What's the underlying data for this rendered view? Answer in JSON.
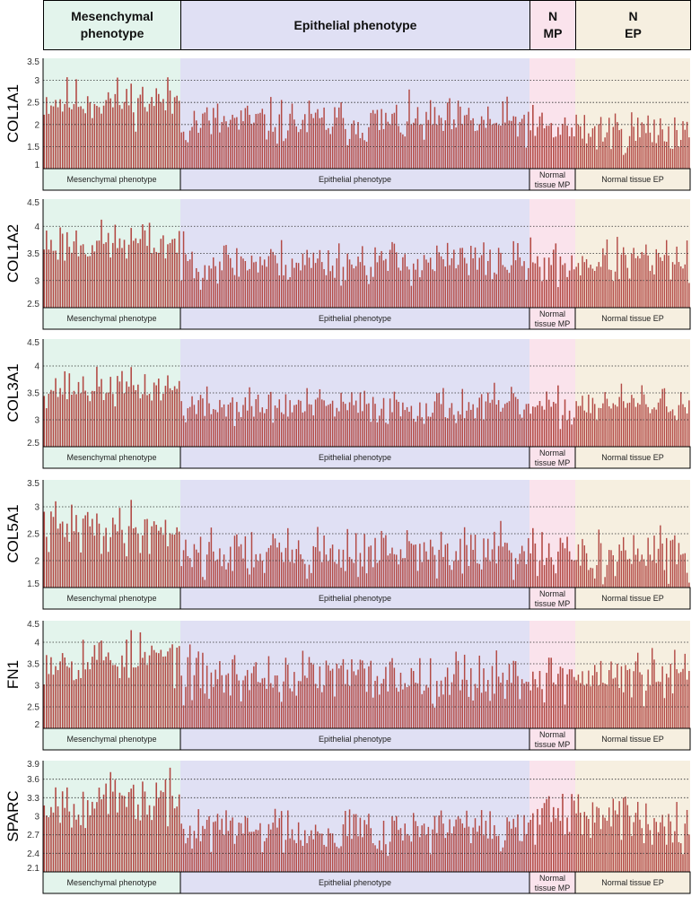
{
  "header": {
    "groups": [
      {
        "key": "mp",
        "label": "Mesenchymal\nphenotype",
        "color": "#e3f4ec"
      },
      {
        "key": "ep",
        "label": "Epithelial phenotype",
        "color": "#e0e0f4"
      },
      {
        "key": "nmp",
        "label": "N\nMP",
        "color": "#fae3ec"
      },
      {
        "key": "nep",
        "label": "N\nEP",
        "color": "#f6efe0"
      }
    ]
  },
  "colors": {
    "bar": "#b34a45",
    "bar_light": "#e2b1ae",
    "grid": "#333333",
    "axis": "#000000"
  },
  "groups": {
    "counts": {
      "mp": 60,
      "ep": 164,
      "nmp": 20,
      "nep": 56
    },
    "labels": {
      "mp": [
        "Mesenchymal phenotype"
      ],
      "ep": [
        "Epithelial phenotype"
      ],
      "nmp": [
        "Normal",
        "tissue MP"
      ],
      "nep": [
        "Normal tissue EP"
      ]
    }
  },
  "chart_data": [
    {
      "type": "bar",
      "gene": "COL1A1",
      "ylim": [
        1,
        3.5
      ],
      "yticks": [
        "1",
        "1.5",
        "2",
        "2.5",
        "3",
        "3.5"
      ],
      "ygrid": [
        1.5,
        2,
        2.5,
        3
      ],
      "group_means": {
        "mp": 2.55,
        "ep": 2.05,
        "nmp": 1.9,
        "nep": 1.85
      },
      "spread": 0.26,
      "seed": 11
    },
    {
      "type": "bar",
      "gene": "COL1A2",
      "ylim": [
        2.5,
        4.5
      ],
      "yticks": [
        "2.5",
        "3",
        "3.5",
        "4",
        "4.5"
      ],
      "ygrid": [
        3,
        3.5,
        4
      ],
      "group_means": {
        "mp": 3.7,
        "ep": 3.35,
        "nmp": 3.3,
        "nep": 3.35
      },
      "spread": 0.2,
      "seed": 23
    },
    {
      "type": "bar",
      "gene": "COL3A1",
      "ylim": [
        2.5,
        4.5
      ],
      "yticks": [
        "2.5",
        "3",
        "3.5",
        "4",
        "4.5"
      ],
      "ygrid": [
        3,
        3.5,
        4
      ],
      "group_means": {
        "mp": 3.6,
        "ep": 3.25,
        "nmp": 3.2,
        "nep": 3.3
      },
      "spread": 0.17,
      "seed": 37
    },
    {
      "type": "bar",
      "gene": "COL5A1",
      "ylim": [
        1.5,
        3.5
      ],
      "yticks": [
        "1.5",
        "2",
        "2.5",
        "3",
        "3.5"
      ],
      "ygrid": [
        2,
        2.5,
        3
      ],
      "group_means": {
        "mp": 2.6,
        "ep": 2.15,
        "nmp": 2.05,
        "nep": 2.1
      },
      "spread": 0.24,
      "seed": 41
    },
    {
      "type": "bar",
      "gene": "FN1",
      "ylim": [
        2,
        4.5
      ],
      "yticks": [
        "2",
        "2.5",
        "3",
        "3.5",
        "4",
        "4.5"
      ],
      "ygrid": [
        2.5,
        3,
        3.5,
        4
      ],
      "group_means": {
        "mp": 3.65,
        "ep": 3.2,
        "nmp": 3.2,
        "nep": 3.2
      },
      "spread": 0.3,
      "seed": 53
    },
    {
      "type": "bar",
      "gene": "SPARC",
      "ylim": [
        2.1,
        3.9
      ],
      "yticks": [
        "2.1",
        "2.4",
        "2.7",
        "3",
        "3.3",
        "3.6",
        "3.9"
      ],
      "ygrid": [
        2.4,
        2.7,
        3,
        3.3,
        3.6
      ],
      "group_means": {
        "mp": 3.25,
        "ep": 2.8,
        "nmp": 2.95,
        "nep": 2.95
      },
      "spread": 0.2,
      "seed": 67
    }
  ]
}
